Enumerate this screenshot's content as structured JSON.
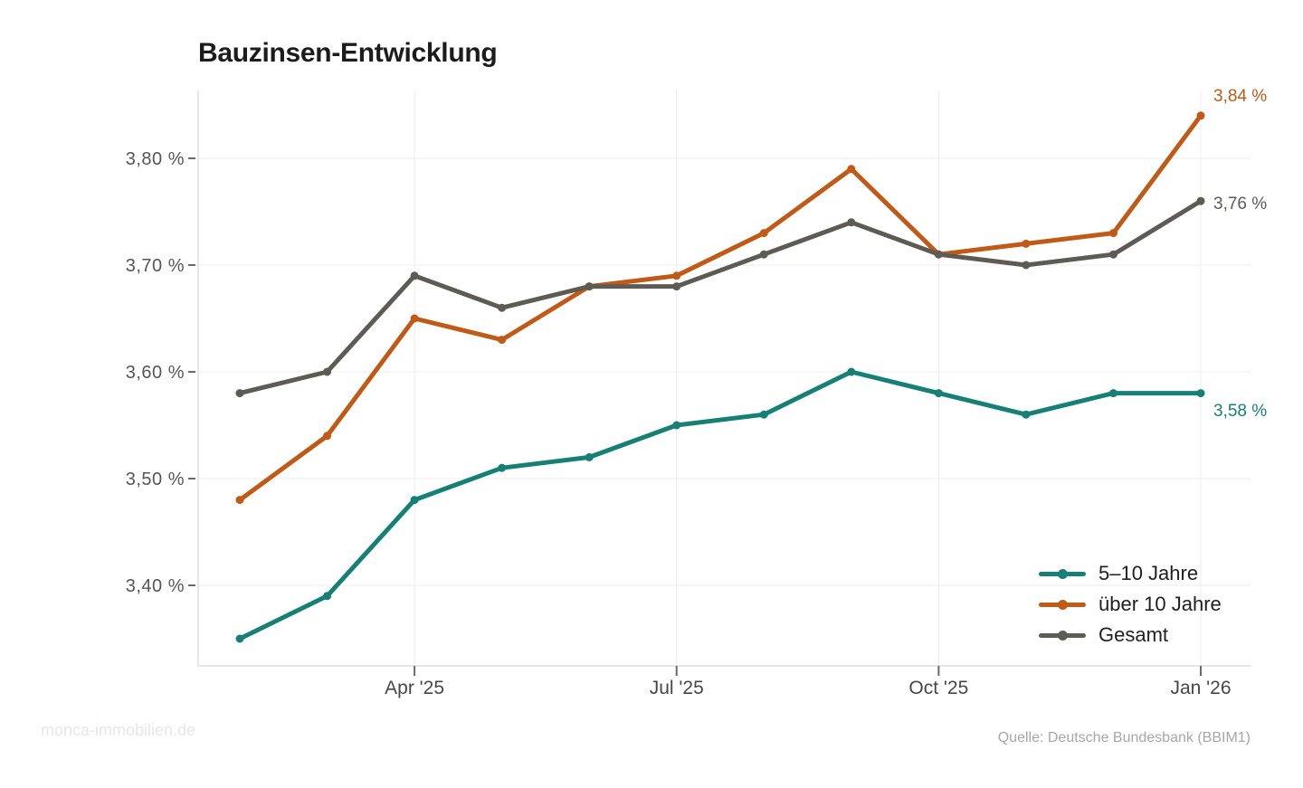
{
  "page": {
    "background": "#ffffff"
  },
  "chart_data": {
    "type": "line",
    "title": "Bauzinsen-Entwicklung",
    "x_unit": "month",
    "x": [
      "Feb '25",
      "Mar '25",
      "Apr '25",
      "May '25",
      "Jun '25",
      "Jul '25",
      "Aug '25",
      "Sep '25",
      "Oct '25",
      "Nov '25",
      "Dec '25",
      "Jan '26"
    ],
    "x_ticks": [
      {
        "index": 2,
        "label": "Apr '25"
      },
      {
        "index": 5,
        "label": "Jul '25"
      },
      {
        "index": 8,
        "label": "Oct '25"
      },
      {
        "index": 11,
        "label": "Jan '26"
      }
    ],
    "y_ticks": [
      {
        "value": 3.4,
        "label": "3,40 %"
      },
      {
        "value": 3.5,
        "label": "3,50 %"
      },
      {
        "value": 3.6,
        "label": "3,60 %"
      },
      {
        "value": 3.7,
        "label": "3,70 %"
      },
      {
        "value": 3.8,
        "label": "3,80 %"
      }
    ],
    "ylim": [
      3.32,
      3.87
    ],
    "grid": true,
    "legend_position": "inside-bottom-right",
    "series": [
      {
        "name": "5–10 Jahre",
        "color": "#178076",
        "end_label": "3,58 %",
        "values": [
          3.35,
          3.39,
          3.48,
          3.51,
          3.52,
          3.55,
          3.56,
          3.6,
          3.58,
          3.56,
          3.58,
          3.58
        ]
      },
      {
        "name": "über 10 Jahre",
        "color": "#c05a16",
        "end_label": "3,84 %",
        "values": [
          3.48,
          3.54,
          3.65,
          3.63,
          3.68,
          3.69,
          3.73,
          3.79,
          3.71,
          3.72,
          3.73,
          3.84
        ]
      },
      {
        "name": "Gesamt",
        "color": "#5e5a54",
        "end_label": "3,76 %",
        "values": [
          3.58,
          3.6,
          3.69,
          3.66,
          3.68,
          3.68,
          3.71,
          3.74,
          3.71,
          3.7,
          3.71,
          3.76
        ]
      }
    ]
  },
  "footer": {
    "watermark": "monca-immobilien.de",
    "source": "Quelle: Deutsche Bundesbank (BBIM1)"
  }
}
